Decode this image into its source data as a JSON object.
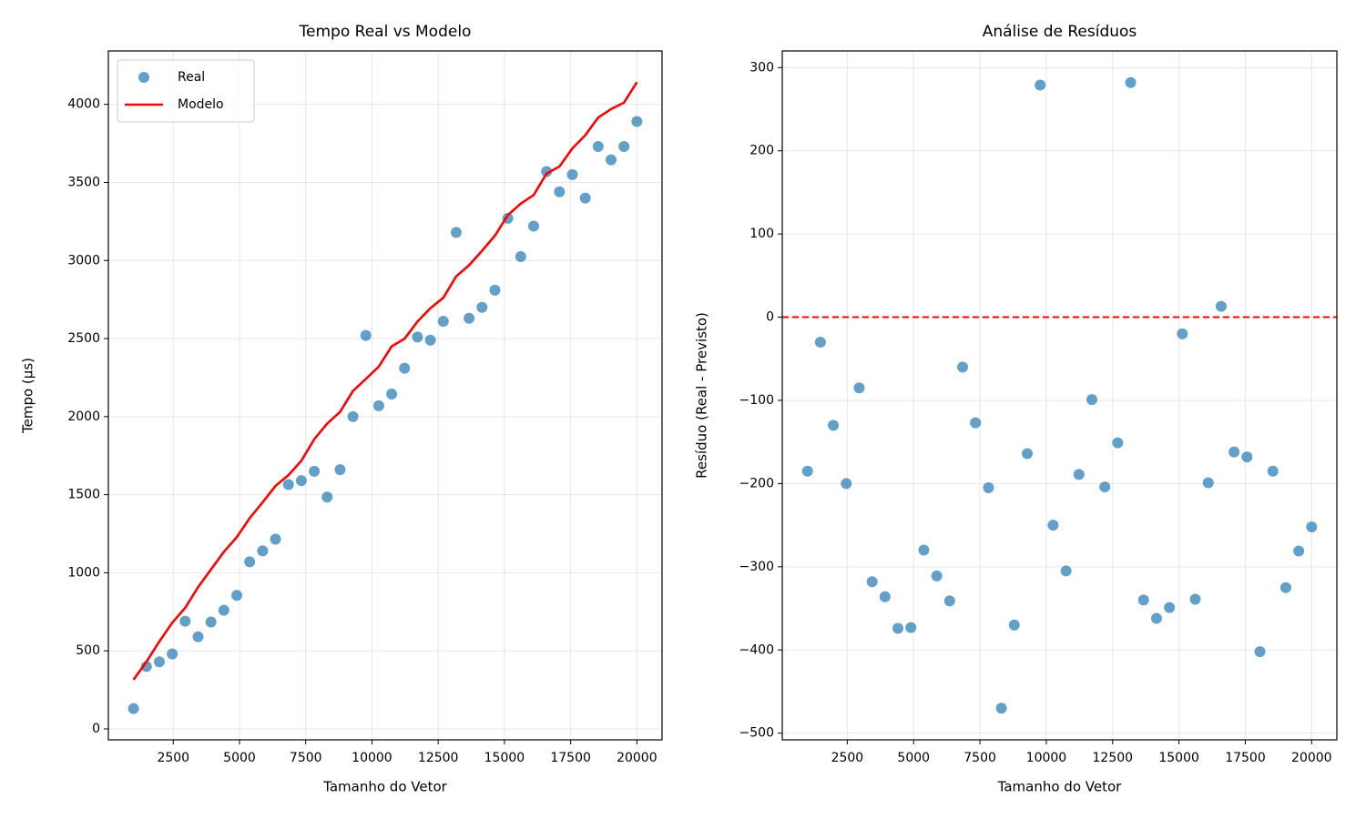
{
  "chart_data": [
    {
      "type": "scatter",
      "title": "Tempo Real vs Modelo",
      "xlabel": "Tamanho do Vetor",
      "ylabel": "Tempo (μs)",
      "x": [
        1000,
        1487,
        1974,
        2462,
        2949,
        3436,
        3923,
        4410,
        4897,
        5385,
        5872,
        6359,
        6846,
        7333,
        7821,
        8308,
        8795,
        9282,
        9769,
        10256,
        10744,
        11231,
        11718,
        12205,
        12692,
        13179,
        13667,
        14154,
        14641,
        15128,
        15615,
        16103,
        16590,
        17077,
        17564,
        18051,
        18538,
        19026,
        19513,
        20000
      ],
      "series": [
        {
          "name": "Real",
          "type": "scatter",
          "color": "#1f77b4",
          "values": [
            130,
            400,
            430,
            480,
            690,
            590,
            685,
            760,
            855,
            1070,
            1140,
            1215,
            1565,
            1590,
            1650,
            1485,
            1660,
            2000,
            2520,
            2070,
            2145,
            2310,
            2510,
            2490,
            2610,
            3180,
            2630,
            2700,
            2810,
            3270,
            3025,
            3220,
            3570,
            3440,
            3550,
            3400,
            3730,
            3645,
            3730,
            3890
          ]
        },
        {
          "name": "Modelo",
          "type": "line",
          "color": "#ff0000",
          "values": [
            315,
            430,
            560,
            680,
            775,
            908,
            1021,
            1134,
            1228,
            1350,
            1451,
            1556,
            1625,
            1717,
            1855,
            1955,
            2030,
            2164,
            2241,
            2320,
            2450,
            2499,
            2609,
            2694,
            2761,
            2898,
            2970,
            3062,
            3159,
            3290,
            3364,
            3419,
            3557,
            3602,
            3718,
            3802,
            3915,
            3970,
            4011,
            4142
          ]
        }
      ],
      "xlim": [
        50,
        20950
      ],
      "xticks": [
        2500,
        5000,
        7500,
        10000,
        12500,
        15000,
        17500,
        20000
      ],
      "ylim": [
        -70,
        4342
      ],
      "yticks": [
        0,
        500,
        1000,
        1500,
        2000,
        2500,
        3000,
        3500,
        4000
      ],
      "grid": true,
      "legend": "upper left"
    },
    {
      "type": "scatter",
      "title": "Análise de Resíduos",
      "xlabel": "Tamanho do Vetor",
      "ylabel": "Resíduo (Real - Previsto)",
      "x": [
        1000,
        1487,
        1974,
        2462,
        2949,
        3436,
        3923,
        4410,
        4897,
        5385,
        5872,
        6359,
        6846,
        7333,
        7821,
        8308,
        8795,
        9282,
        9769,
        10256,
        10744,
        11231,
        11718,
        12205,
        12692,
        13179,
        13667,
        14154,
        14641,
        15128,
        15615,
        16103,
        16590,
        17077,
        17564,
        18051,
        18538,
        19026,
        19513,
        20000
      ],
      "series": [
        {
          "type": "scatter",
          "color": "#1f77b4",
          "values": [
            -185,
            -30,
            -130,
            -200,
            -85,
            -318,
            -336,
            -374,
            -373,
            -280,
            -311,
            -341,
            -60,
            -127,
            -205,
            -470,
            -370,
            -164,
            279,
            -250,
            -305,
            -189,
            -99,
            -204,
            -151,
            282,
            -340,
            -362,
            -349,
            -20,
            -339,
            -199,
            13,
            -162,
            -168,
            -402,
            -185,
            -325,
            -281,
            -252
          ]
        }
      ],
      "hline": {
        "y": 0,
        "color": "#ff0000",
        "style": "dashed"
      },
      "xlim": [
        50,
        20950
      ],
      "xticks": [
        2500,
        5000,
        7500,
        10000,
        12500,
        15000,
        17500,
        20000
      ],
      "ylim": [
        -508,
        320
      ],
      "yticks": [
        {
          "value": -500,
          "label": "−500"
        },
        {
          "value": -400,
          "label": "−400"
        },
        {
          "value": -300,
          "label": "−300"
        },
        {
          "value": -200,
          "label": "−200"
        },
        {
          "value": -100,
          "label": "−100"
        },
        0,
        100,
        200,
        300
      ],
      "grid": true
    }
  ]
}
